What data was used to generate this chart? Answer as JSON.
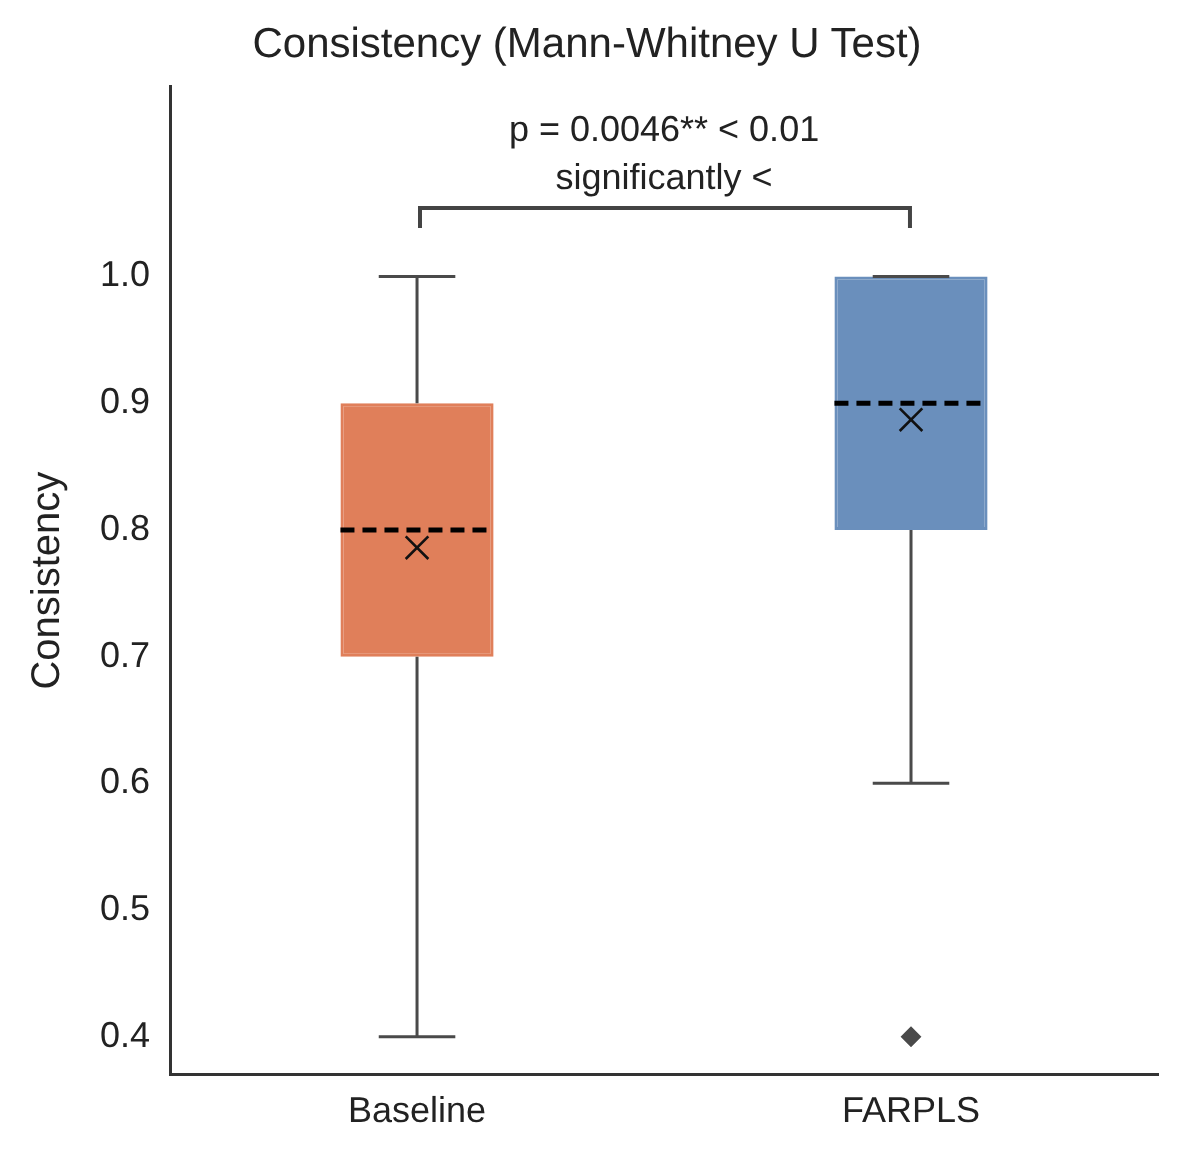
{
  "chart_data": {
    "type": "box",
    "title": "Consistency (Mann-Whitney U Test)",
    "ylabel": "Consistency",
    "categories": [
      "Baseline",
      "FARPLS"
    ],
    "colors": [
      "#e07f5a",
      "#6a8fbc"
    ],
    "boxes": [
      {
        "low": 0.4,
        "q1": 0.7,
        "median": 0.8,
        "q3": 0.9,
        "high": 1.0,
        "mean": 0.786
      },
      {
        "low": 0.6,
        "q1": 0.8,
        "median": 0.9,
        "q3": 1.0,
        "high": 1.0,
        "mean": 0.887,
        "outliers": [
          0.4
        ]
      }
    ],
    "ylim": [
      0.37,
      1.15
    ],
    "yticks": [
      0.4,
      0.5,
      0.6,
      0.7,
      0.8,
      0.9,
      {
        "value": 1,
        "label": "1.0"
      }
    ],
    "annotations": [
      "p = 0.0046** < 0.01",
      "significantly <"
    ],
    "grid": false,
    "legend": false
  }
}
